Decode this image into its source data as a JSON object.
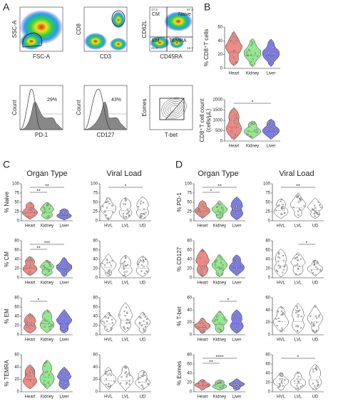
{
  "panel_labels": [
    "A",
    "B",
    "C",
    "D"
  ],
  "flow_plots": [
    {
      "y_label": "SSC-A",
      "x_label": "FSC-A"
    },
    {
      "y_label": "CD8",
      "x_label": "CD3"
    },
    {
      "y_label": "CD62L",
      "x_label": "CD45RA",
      "gates": [
        "CM",
        "Naive",
        "EM",
        "TEMRA"
      ],
      "gate_values": [
        "17.2",
        "47.2",
        "21.9",
        "13.7"
      ]
    },
    {
      "y_label": "Count",
      "x_label": "PD-1",
      "gate_values": [
        "29%"
      ]
    },
    {
      "y_label": "Count",
      "x_label": "CD127",
      "gate_values": [
        "43%"
      ]
    },
    {
      "y_label": "Eomes",
      "x_label": "T-bet"
    }
  ],
  "organ_categories": [
    "Heart",
    "Kidney",
    "Liver"
  ],
  "organ_colors": [
    "#ec8a84",
    "#95e88f",
    "#7d7ce6"
  ],
  "viral_categories": [
    "HVL",
    "LVL",
    "UD"
  ],
  "viral_color": "#ffffff",
  "panel_b": [
    {
      "y_label": [
        "% CD8⁺T cells"
      ],
      "yticks": [
        "0",
        "20",
        "40",
        "60"
      ]
    },
    {
      "y_label": [
        "CD8⁺T cell count",
        "(cells/µL)"
      ],
      "yticks": [
        "0",
        "500",
        "1000",
        "1500",
        "2000"
      ],
      "significance": [
        "*"
      ]
    }
  ],
  "panel_c": {
    "headers": [
      "Organ Type",
      "Viral Load"
    ],
    "rows": [
      {
        "y_label": "% Naive",
        "organ_yticks": [
          "0",
          "25",
          "50",
          "75",
          "100"
        ],
        "viral_yticks": [
          "0",
          "25",
          "50",
          "75",
          "100"
        ],
        "organ_significance": [
          "**",
          "**"
        ],
        "viral_significance": [
          "*"
        ]
      },
      {
        "y_label": "% CM",
        "organ_yticks": [
          "0",
          "20",
          "40",
          "60",
          "80"
        ],
        "viral_yticks": [
          "0",
          "20",
          "40",
          "60",
          "80"
        ],
        "organ_significance": [
          "**",
          "***"
        ]
      },
      {
        "y_label": "% EM",
        "organ_yticks": [
          "0",
          "20",
          "40",
          "60",
          "80"
        ],
        "viral_yticks": [
          "0",
          "20",
          "40",
          "60",
          "80"
        ],
        "organ_significance": [
          "*"
        ]
      },
      {
        "y_label": "% TEMRA",
        "organ_yticks": [
          "0",
          "20",
          "40",
          "60"
        ],
        "viral_yticks": [
          "0",
          "20",
          "40",
          "60"
        ]
      }
    ]
  },
  "panel_d": {
    "headers": [
      "Organ Type",
      "Viral Load"
    ],
    "rows": [
      {
        "y_label": "% PD-1",
        "organ_yticks": [
          "0",
          "25",
          "50",
          "75",
          "100"
        ],
        "viral_yticks": [
          "0",
          "25",
          "50",
          "75",
          "100"
        ],
        "organ_significance": [
          "*",
          "**"
        ],
        "viral_significance": [
          "**"
        ]
      },
      {
        "y_label": "% CD127",
        "organ_yticks": [
          "0",
          "20",
          "40",
          "60",
          "80"
        ],
        "viral_yticks": [
          "0",
          "20",
          "40",
          "60",
          "80"
        ],
        "viral_significance": [
          "*"
        ]
      },
      {
        "y_label": "% T-bet",
        "organ_yticks": [
          "0",
          "20",
          "40",
          "60"
        ],
        "viral_yticks": [
          "0",
          "20",
          "40",
          "60"
        ],
        "organ_significance": [
          "*"
        ]
      },
      {
        "y_label": "% Eomes",
        "organ_yticks": [
          "0",
          "20",
          "40",
          "60",
          "80"
        ],
        "viral_yticks": [
          "0",
          "20",
          "40",
          "60",
          "80"
        ],
        "organ_significance": [
          "**",
          "****"
        ],
        "viral_significance": [
          "*"
        ]
      }
    ]
  }
}
